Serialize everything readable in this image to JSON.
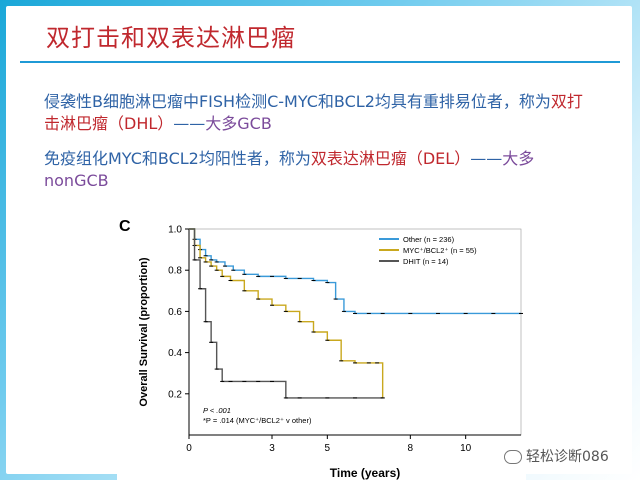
{
  "slide": {
    "title": "双打击和双表达淋巴瘤",
    "p1": {
      "a": "侵袭性B细胞淋巴瘤中FISH检测C-MYC和BCL2均具有重排易位者，称为",
      "dhl": "双打击淋巴瘤（DHL）",
      "dash": "——",
      "gcb": "大多GCB"
    },
    "p2": {
      "a": "免疫组化MYC和BCL2均阳性者，称为",
      "del": "双表达淋巴瘤（DEL）",
      "dash": "——",
      "nongcb": "大多nonGCB"
    },
    "watermark": "轻松诊断086"
  },
  "chart_data": {
    "type": "line",
    "panel_label": "C",
    "xlabel": "Time (years)",
    "ylabel": "Overall Survival (proportion)",
    "xlim": [
      0,
      12
    ],
    "ylim": [
      0,
      1.0
    ],
    "xticks": [
      "0",
      "3",
      "5",
      "8",
      "10"
    ],
    "xtick_values": [
      0,
      3,
      5,
      8,
      10
    ],
    "yticks": [
      "0.2",
      "0.4",
      "0.6",
      "0.8",
      "1.0"
    ],
    "ytick_values": [
      0.2,
      0.4,
      0.6,
      0.8,
      1.0
    ],
    "legend_position": "top-right",
    "pvalue_lines": [
      "P < .001",
      "*P = .014 (MYC⁺/BCL2⁺ v other)"
    ],
    "series": [
      {
        "name": "Other (n = 236)",
        "color": "#3a9ad9",
        "x": [
          0,
          0.2,
          0.4,
          0.6,
          0.8,
          1.0,
          1.3,
          1.6,
          2.0,
          2.5,
          3.0,
          3.5,
          4.0,
          4.5,
          5.0,
          5.3,
          5.6,
          6.0,
          6.5,
          7.0,
          8.0,
          9.0,
          10.0,
          11.0,
          12.0
        ],
        "y": [
          1.0,
          0.95,
          0.9,
          0.87,
          0.85,
          0.84,
          0.82,
          0.8,
          0.78,
          0.77,
          0.77,
          0.76,
          0.76,
          0.75,
          0.74,
          0.66,
          0.6,
          0.59,
          0.59,
          0.59,
          0.59,
          0.59,
          0.59,
          0.59,
          0.59
        ]
      },
      {
        "name": "MYC⁺/BCL2⁺ (n = 55)",
        "color": "#c9a81e",
        "x": [
          0,
          0.2,
          0.4,
          0.6,
          0.8,
          1.0,
          1.2,
          1.5,
          2.0,
          2.5,
          3.0,
          3.5,
          4.0,
          4.5,
          5.0,
          5.5,
          6.0,
          6.5,
          6.8,
          7.0
        ],
        "y": [
          1.0,
          0.92,
          0.86,
          0.84,
          0.82,
          0.8,
          0.77,
          0.75,
          0.7,
          0.66,
          0.63,
          0.6,
          0.55,
          0.5,
          0.46,
          0.36,
          0.35,
          0.35,
          0.35,
          0.18
        ]
      },
      {
        "name": "DHIT (n = 14)",
        "color": "#555555",
        "x": [
          0,
          0.2,
          0.4,
          0.6,
          0.8,
          1.0,
          1.2,
          1.5,
          2.0,
          2.5,
          3.0,
          3.5,
          4.0,
          5.0,
          6.0,
          7.0
        ],
        "y": [
          1.0,
          0.85,
          0.71,
          0.55,
          0.45,
          0.32,
          0.26,
          0.26,
          0.26,
          0.26,
          0.26,
          0.18,
          0.18,
          0.18,
          0.18,
          0.18
        ]
      }
    ]
  }
}
